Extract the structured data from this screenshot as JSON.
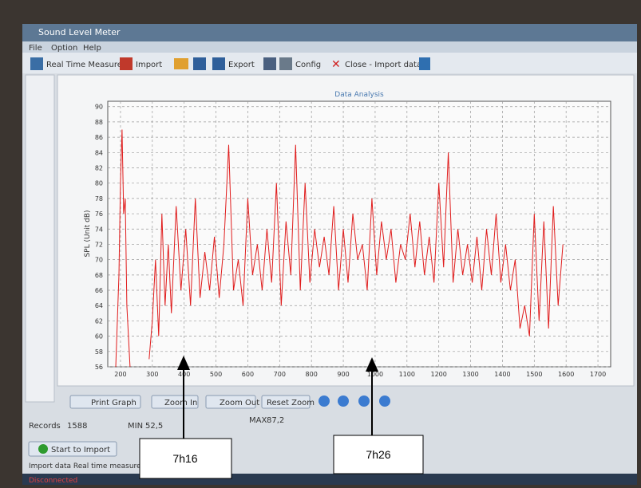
{
  "window": {
    "title": "Sound Level Meter",
    "menu": [
      "File",
      "Option",
      "Help"
    ],
    "toolbar": [
      "Real Time Measure",
      "Import",
      "Export",
      "Config",
      "Close - Import data"
    ]
  },
  "chart_data": {
    "type": "line",
    "title": "Data Analysis",
    "y_label": "SPL (Unit dB)",
    "x": [
      185,
      195,
      200,
      205,
      210,
      215,
      220,
      230,
      260,
      290,
      300,
      310,
      320,
      330,
      340,
      350,
      360,
      375,
      390,
      405,
      420,
      435,
      450,
      465,
      480,
      495,
      510,
      525,
      540,
      555,
      570,
      585,
      600,
      615,
      630,
      645,
      660,
      675,
      690,
      705,
      720,
      735,
      750,
      765,
      780,
      795,
      810,
      825,
      840,
      855,
      870,
      885,
      900,
      915,
      930,
      945,
      960,
      975,
      990,
      1005,
      1020,
      1035,
      1050,
      1065,
      1080,
      1095,
      1110,
      1125,
      1140,
      1155,
      1170,
      1185,
      1200,
      1215,
      1230,
      1245,
      1260,
      1275,
      1290,
      1305,
      1320,
      1335,
      1350,
      1365,
      1380,
      1395,
      1410,
      1425,
      1440,
      1455,
      1470,
      1485,
      1500,
      1515,
      1530,
      1545,
      1560,
      1575,
      1590
    ],
    "series": [
      {
        "color": "#e01c1c",
        "values": [
          56,
          68,
          80,
          87,
          76,
          78,
          64,
          56,
          null,
          57,
          62,
          70,
          60,
          76,
          64,
          72,
          63,
          77,
          66,
          74,
          64,
          78,
          65,
          71,
          66,
          73,
          65,
          72,
          85,
          66,
          70,
          64,
          78,
          68,
          72,
          66,
          74,
          67,
          80,
          64,
          75,
          68,
          85,
          66,
          80,
          67,
          74,
          69,
          73,
          68,
          77,
          66,
          74,
          67,
          76,
          70,
          72,
          66,
          78,
          68,
          75,
          70,
          74,
          67,
          72,
          70,
          76,
          69,
          75,
          68,
          73,
          67,
          80,
          69,
          84,
          67,
          74,
          68,
          72,
          67,
          73,
          66,
          74,
          68,
          76,
          67,
          72,
          66,
          70,
          61,
          64,
          60,
          76,
          62,
          75,
          61,
          77,
          64,
          72
        ]
      }
    ],
    "xlim": [
      160,
      1740
    ],
    "ylim": [
      56,
      90.7
    ],
    "xticks": [
      200,
      300,
      400,
      500,
      600,
      700,
      800,
      900,
      1000,
      1100,
      1200,
      1300,
      1400,
      1500,
      1600,
      1700
    ],
    "yticks": [
      56,
      58,
      60,
      62,
      64,
      66,
      68,
      70,
      72,
      74,
      76,
      78,
      80,
      82,
      84,
      86,
      88,
      90
    ],
    "grid": true
  },
  "controls": {
    "buttons": [
      "Print Graph",
      "Zoom In",
      "Zoom Out",
      "Reset Zoom"
    ],
    "records_label": "Records",
    "records": 1588,
    "min_label": "MIN",
    "min": "52,5",
    "max_label": "MAX",
    "max": "87,2",
    "start_button": "Start to Import",
    "log": "Import data Real time measure",
    "status": "Disconnected"
  },
  "annotations": [
    "7h16",
    "7h26"
  ]
}
